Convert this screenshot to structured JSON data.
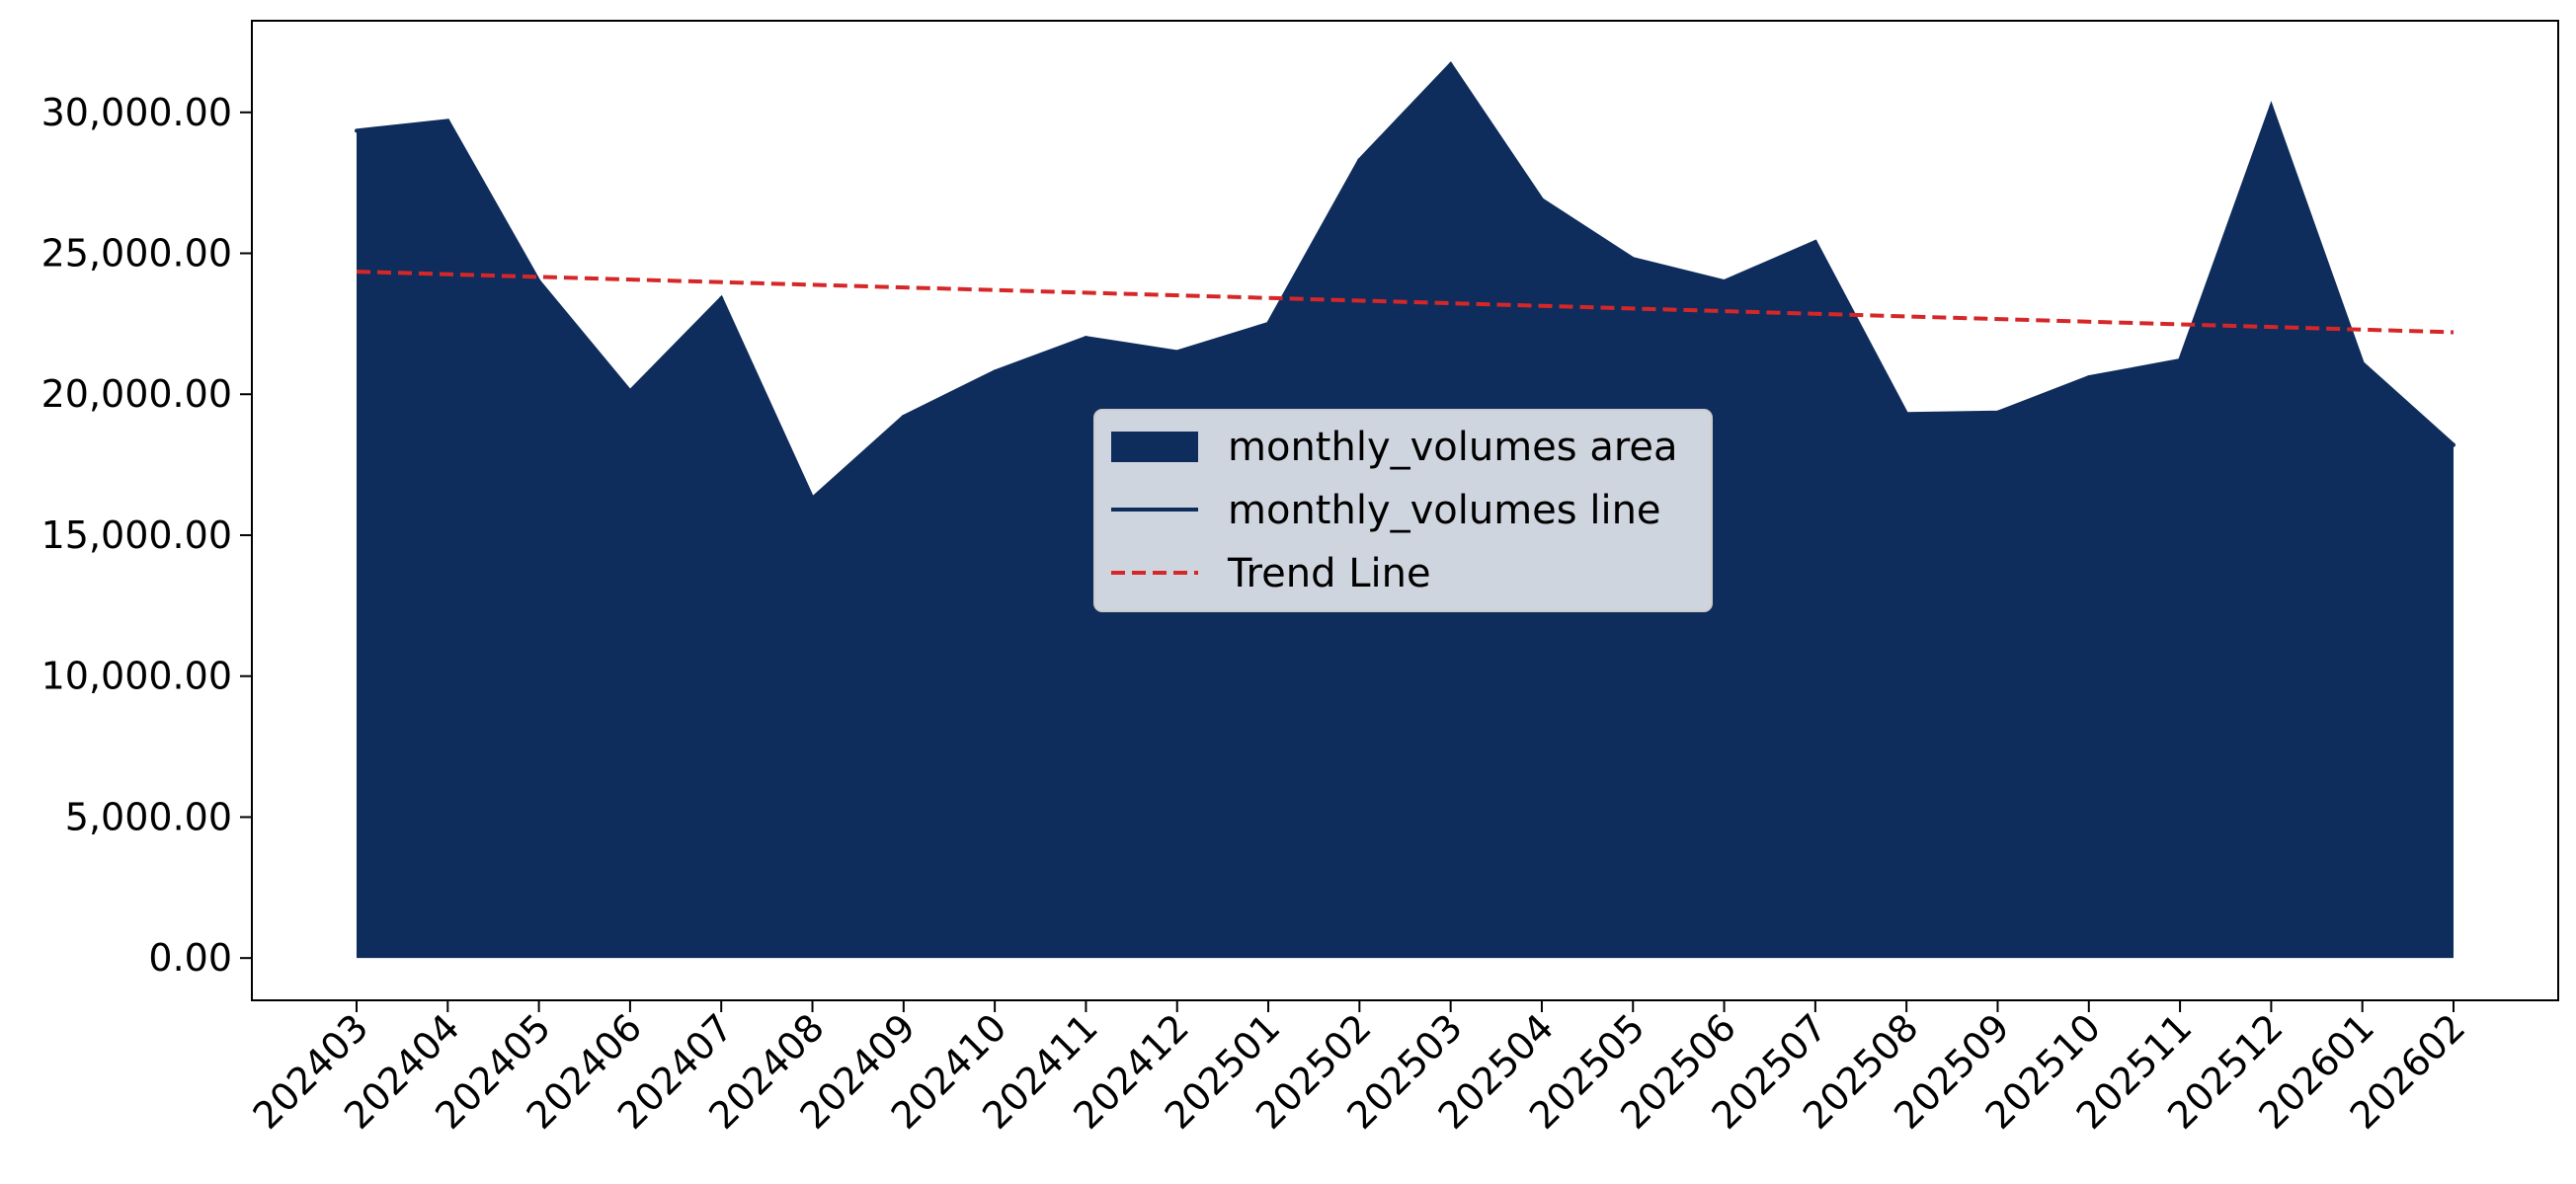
{
  "chart_data": {
    "type": "area",
    "title": "",
    "xlabel": "",
    "ylabel": "",
    "categories": [
      "202403",
      "202404",
      "202405",
      "202406",
      "202407",
      "202408",
      "202409",
      "202410",
      "202411",
      "202412",
      "202501",
      "202502",
      "202503",
      "202504",
      "202505",
      "202506",
      "202507",
      "202508",
      "202509",
      "202510",
      "202511",
      "202512",
      "202601",
      "202602"
    ],
    "series": [
      {
        "name": "monthly_volumes area",
        "kind": "area",
        "color": "#0f2d5c",
        "values": [
          29350,
          29700,
          24000,
          20100,
          23400,
          16300,
          19200,
          20800,
          22000,
          21500,
          22500,
          28300,
          31700,
          26900,
          24800,
          24000,
          25400,
          19300,
          19350,
          20600,
          21200,
          30200,
          21100,
          18200
        ]
      },
      {
        "name": "monthly_volumes line",
        "kind": "line",
        "color": "#0f2d5c",
        "values": [
          29350,
          29700,
          24000,
          20100,
          23400,
          16300,
          19200,
          20800,
          22000,
          21500,
          22500,
          28300,
          31700,
          26900,
          24800,
          24000,
          25400,
          19300,
          19350,
          20600,
          21200,
          30200,
          21100,
          18200
        ]
      },
      {
        "name": "Trend Line",
        "kind": "trend",
        "color": "#d62728",
        "start": 24350,
        "end": 22200
      }
    ],
    "yticks": [
      0,
      5000,
      10000,
      15000,
      20000,
      25000,
      30000
    ],
    "ytick_labels": [
      "0.00",
      "5,000.00",
      "10,000.00",
      "15,000.00",
      "20,000.00",
      "25,000.00",
      "30,000.00"
    ],
    "ylim": [
      -1500,
      33250
    ],
    "grid": false,
    "legend": {
      "placement": "center",
      "entries": [
        "monthly_volumes area",
        "monthly_volumes line",
        "Trend Line"
      ]
    }
  }
}
